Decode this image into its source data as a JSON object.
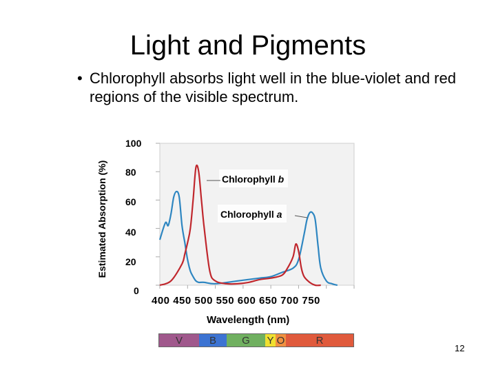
{
  "slide": {
    "title": "Light and Pigments",
    "bullet_mark": "•",
    "bullet_text": "Chlorophyll absorbs light well in the blue-violet and red regions of the visible spectrum.",
    "page_number": "12"
  },
  "chart_data": {
    "type": "line",
    "xlabel": "Wavelength (nm)",
    "ylabel": "Estimated Absorption (%)",
    "xlim": [
      400,
      750
    ],
    "ylim": [
      0,
      100
    ],
    "y_ticks": [
      "100",
      "80",
      "60",
      "40",
      "20",
      "0"
    ],
    "x_ticks": [
      "400",
      "450",
      "500",
      "550",
      "600",
      "650",
      "700",
      "750"
    ],
    "x_tick_text": "400 450 500 550 600 650 700 750",
    "series": [
      {
        "name": "Chlorophyll a",
        "color": "#2e86c1",
        "x": [
          400,
          410,
          415,
          420,
          425,
          430,
          435,
          440,
          445,
          450,
          455,
          460,
          465,
          470,
          480,
          500,
          540,
          580,
          600,
          620,
          640,
          650,
          660,
          665,
          670,
          675,
          680,
          685,
          690,
          700,
          710,
          720
        ],
        "y": [
          32,
          44,
          42,
          50,
          62,
          66,
          62,
          42,
          30,
          18,
          10,
          6,
          3,
          2,
          2,
          1,
          3,
          5,
          6,
          9,
          12,
          18,
          36,
          46,
          51,
          51,
          46,
          28,
          12,
          3,
          1,
          0
        ]
      },
      {
        "name": "Chlorophyll b",
        "color": "#c0272d",
        "x": [
          400,
          420,
          440,
          445,
          450,
          455,
          460,
          465,
          470,
          475,
          480,
          490,
          500,
          520,
          540,
          560,
          580,
          600,
          620,
          630,
          640,
          645,
          650,
          655,
          660,
          670,
          680,
          690
        ],
        "y": [
          0,
          3,
          15,
          22,
          30,
          40,
          60,
          83,
          80,
          60,
          40,
          10,
          3,
          1,
          1,
          2,
          4,
          5,
          7,
          12,
          20,
          29,
          24,
          12,
          6,
          2,
          0,
          0
        ]
      }
    ],
    "annotations": [
      {
        "text": "Chlorophyll ",
        "italic": "b",
        "series": "Chlorophyll b"
      },
      {
        "text": "Chlorophyll ",
        "italic": "a",
        "series": "Chlorophyll a"
      }
    ],
    "spectrum_bands": [
      {
        "label": "V",
        "color": "#a0588c"
      },
      {
        "label": "B",
        "color": "#3c73d2"
      },
      {
        "label": "G",
        "color": "#70b060"
      },
      {
        "label": "Y",
        "color": "#f0e030"
      },
      {
        "label": "O",
        "color": "#f09040"
      },
      {
        "label": "R",
        "color": "#e05a3c"
      }
    ]
  }
}
